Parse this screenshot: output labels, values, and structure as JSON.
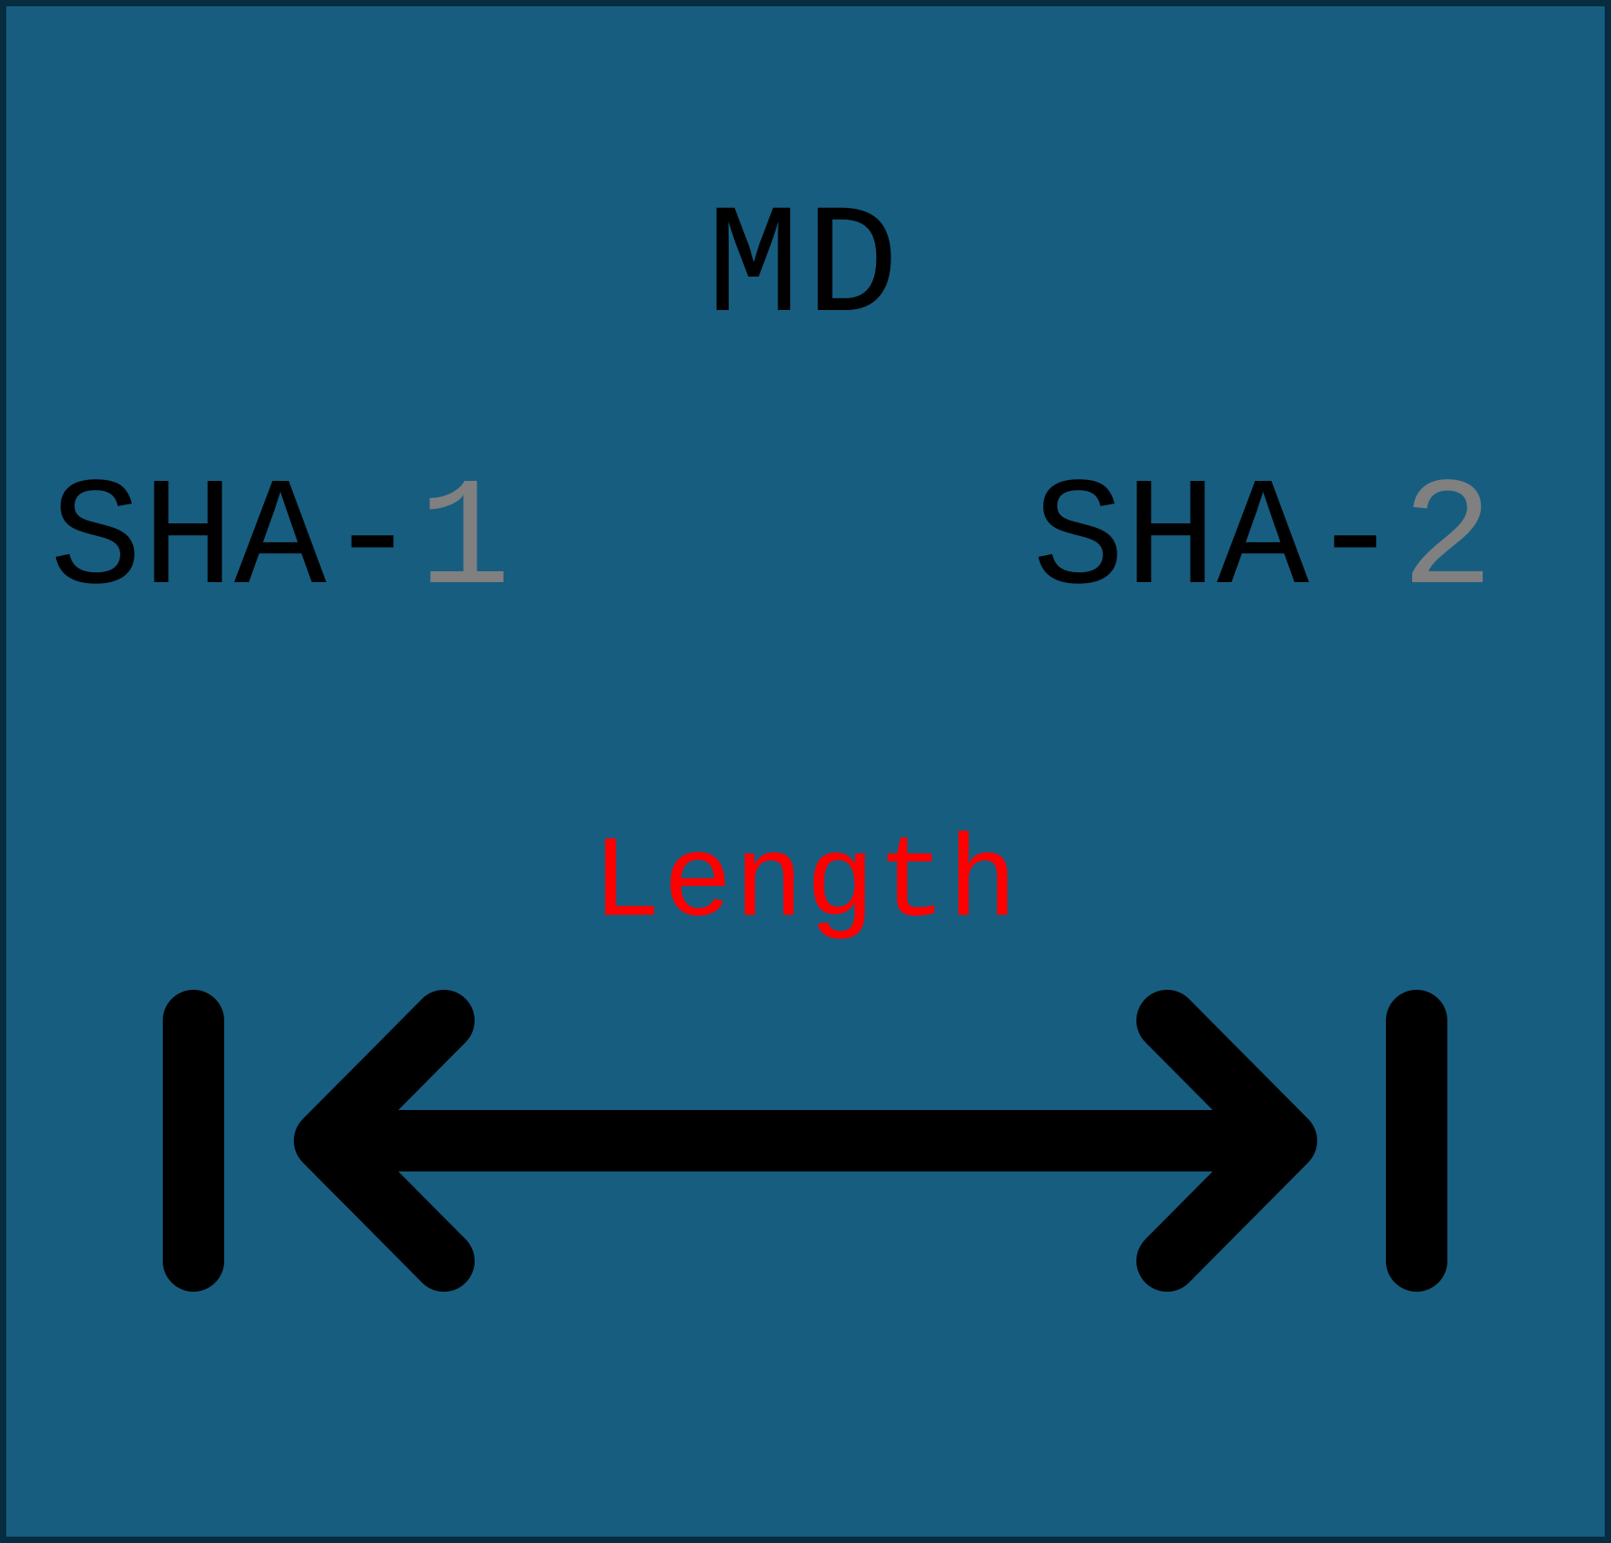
{
  "labels": {
    "md": "MD",
    "sha1_prefix": "SHA-",
    "sha1_number": "1",
    "sha2_prefix": "SHA-",
    "sha2_number": "2",
    "length": "Length"
  },
  "colors": {
    "background": "#175d80",
    "border": "#062c40",
    "text": "#000000",
    "number": "#808080",
    "length": "#ff0000",
    "arrow": "#000000"
  },
  "icons": {
    "length_arrow": "double-arrow-with-end-bars-icon"
  }
}
